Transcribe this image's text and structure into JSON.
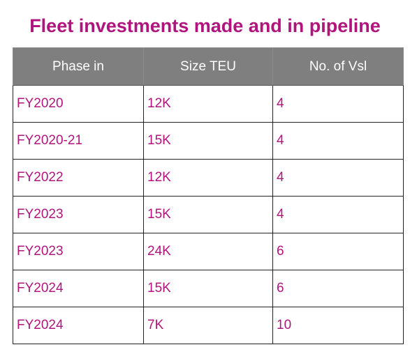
{
  "title": "Fleet investments made and in pipeline",
  "colors": {
    "accent": "#b0157d",
    "header_bg": "#7f7f7f",
    "header_text": "#ffffff"
  },
  "table": {
    "headers": [
      "Phase in",
      "Size TEU",
      "No. of Vsl"
    ],
    "rows": [
      [
        "FY2020",
        "12K",
        "4"
      ],
      [
        "FY2020-21",
        "15K",
        "4"
      ],
      [
        "FY2022",
        "12K",
        "4"
      ],
      [
        "FY2023",
        "15K",
        "4"
      ],
      [
        "FY2023",
        "24K",
        "6"
      ],
      [
        "FY2024",
        "15K",
        "6"
      ],
      [
        "FY2024",
        "7K",
        "10"
      ]
    ]
  }
}
